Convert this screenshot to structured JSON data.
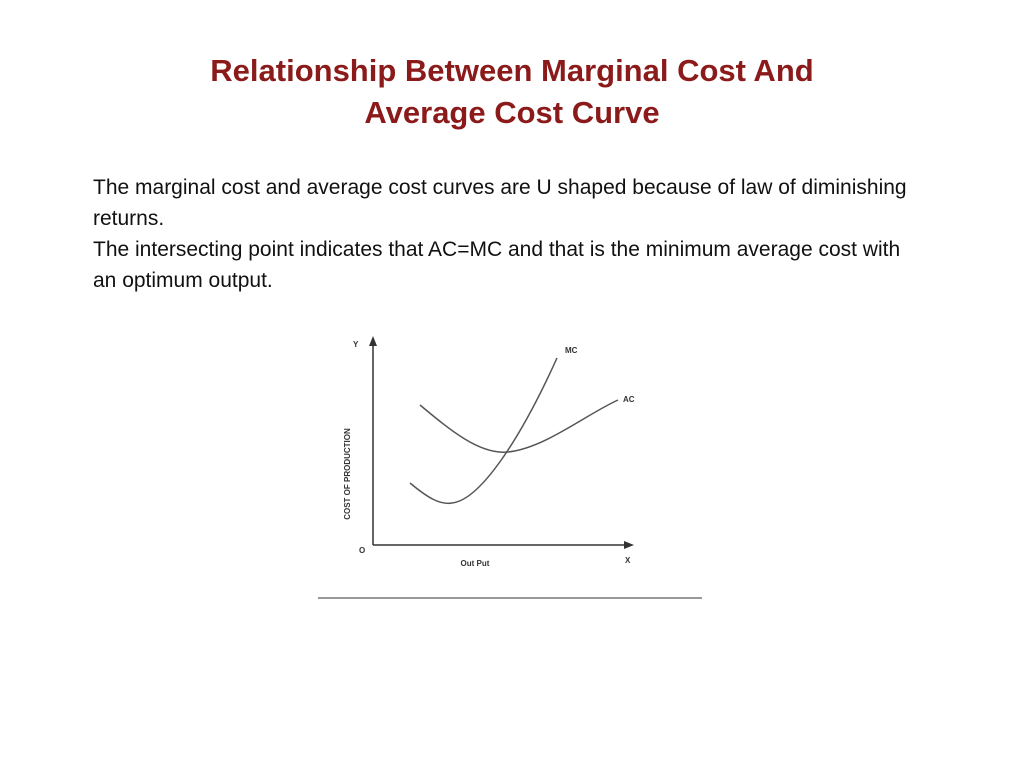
{
  "header": {
    "title_lines": [
      "Relationship Between Marginal Cost And",
      "Average Cost Curve"
    ]
  },
  "body": {
    "paragraphs": [
      "The marginal cost and average cost curves are U shaped because of law of diminishing returns.",
      "The intersecting point indicates that AC=MC and that is the minimum average cost with an optimum output."
    ]
  },
  "diagram": {
    "y_axis_letter": "Y",
    "y_axis_label": "COST OF PRODUCTION",
    "origin": "O",
    "x_axis_label": "Out Put",
    "x_axis_letter": "X",
    "curves": [
      {
        "label": "MC"
      },
      {
        "label": "AC"
      }
    ]
  }
}
